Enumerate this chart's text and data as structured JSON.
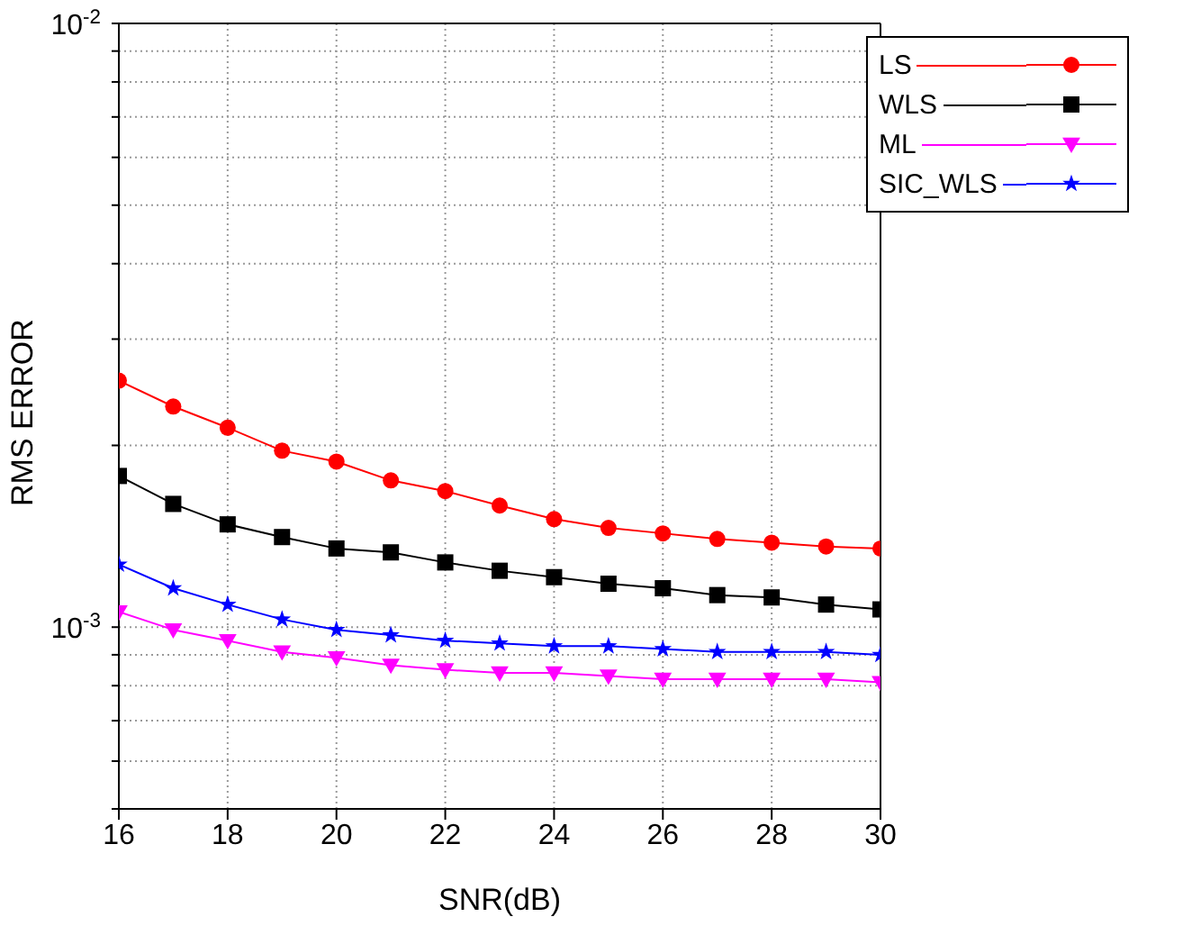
{
  "chart_data": {
    "type": "line",
    "xlabel": "SNR(dB)",
    "ylabel": "RMS ERROR",
    "x": [
      16,
      17,
      18,
      19,
      20,
      21,
      22,
      23,
      24,
      25,
      26,
      27,
      28,
      29,
      30
    ],
    "series": [
      {
        "name": "LS",
        "color": "#ff0000",
        "marker": "circle",
        "values": [
          0.00256,
          0.00232,
          0.00214,
          0.00196,
          0.00188,
          0.00175,
          0.00168,
          0.00159,
          0.00151,
          0.00146,
          0.00143,
          0.0014,
          0.00138,
          0.00136,
          0.00135
        ]
      },
      {
        "name": "WLS",
        "color": "#000000",
        "marker": "square",
        "values": [
          0.00178,
          0.0016,
          0.00148,
          0.00141,
          0.00135,
          0.00133,
          0.00128,
          0.00124,
          0.00121,
          0.00118,
          0.00116,
          0.00113,
          0.00112,
          0.00109,
          0.00107
        ]
      },
      {
        "name": "ML",
        "color": "#ff00ff",
        "marker": "triangle",
        "values": [
          0.00106,
          0.00099,
          0.00095,
          0.00091,
          0.00089,
          0.000865,
          0.00085,
          0.00084,
          0.00084,
          0.00083,
          0.00082,
          0.00082,
          0.00082,
          0.00082,
          0.00081
        ]
      },
      {
        "name": "SIC_WLS",
        "color": "#0000ff",
        "marker": "star",
        "values": [
          0.00127,
          0.00116,
          0.00109,
          0.00103,
          0.00099,
          0.00097,
          0.00095,
          0.00094,
          0.00093,
          0.00093,
          0.00092,
          0.00091,
          0.00091,
          0.00091,
          0.0009
        ]
      }
    ],
    "log": true,
    "xlim": [
      16,
      30
    ],
    "xticks": [
      16,
      18,
      20,
      22,
      24,
      26,
      28,
      30
    ],
    "ylim": [
      0.0005,
      0.01
    ],
    "yticks": [
      {
        "value": 0.0005,
        "label": null
      },
      {
        "value": 0.0006,
        "label": null
      },
      {
        "value": 0.0007,
        "label": null
      },
      {
        "value": 0.0008,
        "label": null
      },
      {
        "value": 0.0009,
        "label": null
      },
      {
        "value": 0.001,
        "label": "10$^{-3}$"
      },
      {
        "value": 0.002,
        "label": null
      },
      {
        "value": 0.003,
        "label": null
      },
      {
        "value": 0.004,
        "label": null
      },
      {
        "value": 0.005,
        "label": null
      },
      {
        "value": 0.006,
        "label": null
      },
      {
        "value": 0.007,
        "label": null
      },
      {
        "value": 0.008,
        "label": null
      },
      {
        "value": 0.009,
        "label": null
      },
      {
        "value": 0.01,
        "label": "10$^{-2}$"
      }
    ],
    "grid": true,
    "legend": "top right",
    "line_style": "solid"
  }
}
